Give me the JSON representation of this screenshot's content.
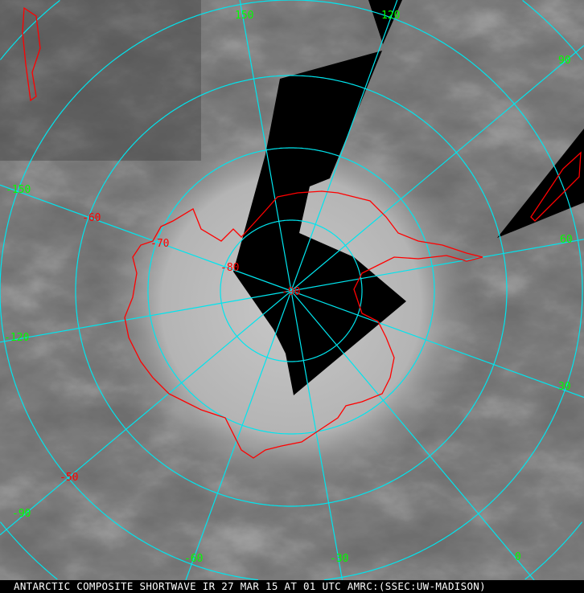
{
  "caption": "ANTARCTIC COMPOSITE SHORTWAVE IR 27 MAR 15 AT 01 UTC AMRC:(SSEC:UW-MADISON)",
  "projection": "polar stereographic, south pole centered",
  "colors": {
    "grid": "#00e5ee",
    "coastline": "#ff0000",
    "longitude_labels": "#00ff00",
    "latitude_labels": "#ff0000",
    "missing_data": "#000000"
  },
  "longitude_labels": [
    "150",
    "120",
    "90",
    "60",
    "30",
    "0",
    "-30",
    "-60",
    "-90",
    "-120",
    "-150"
  ],
  "latitude_labels": [
    "-90",
    "-80",
    "-70",
    "-60",
    "-50"
  ]
}
